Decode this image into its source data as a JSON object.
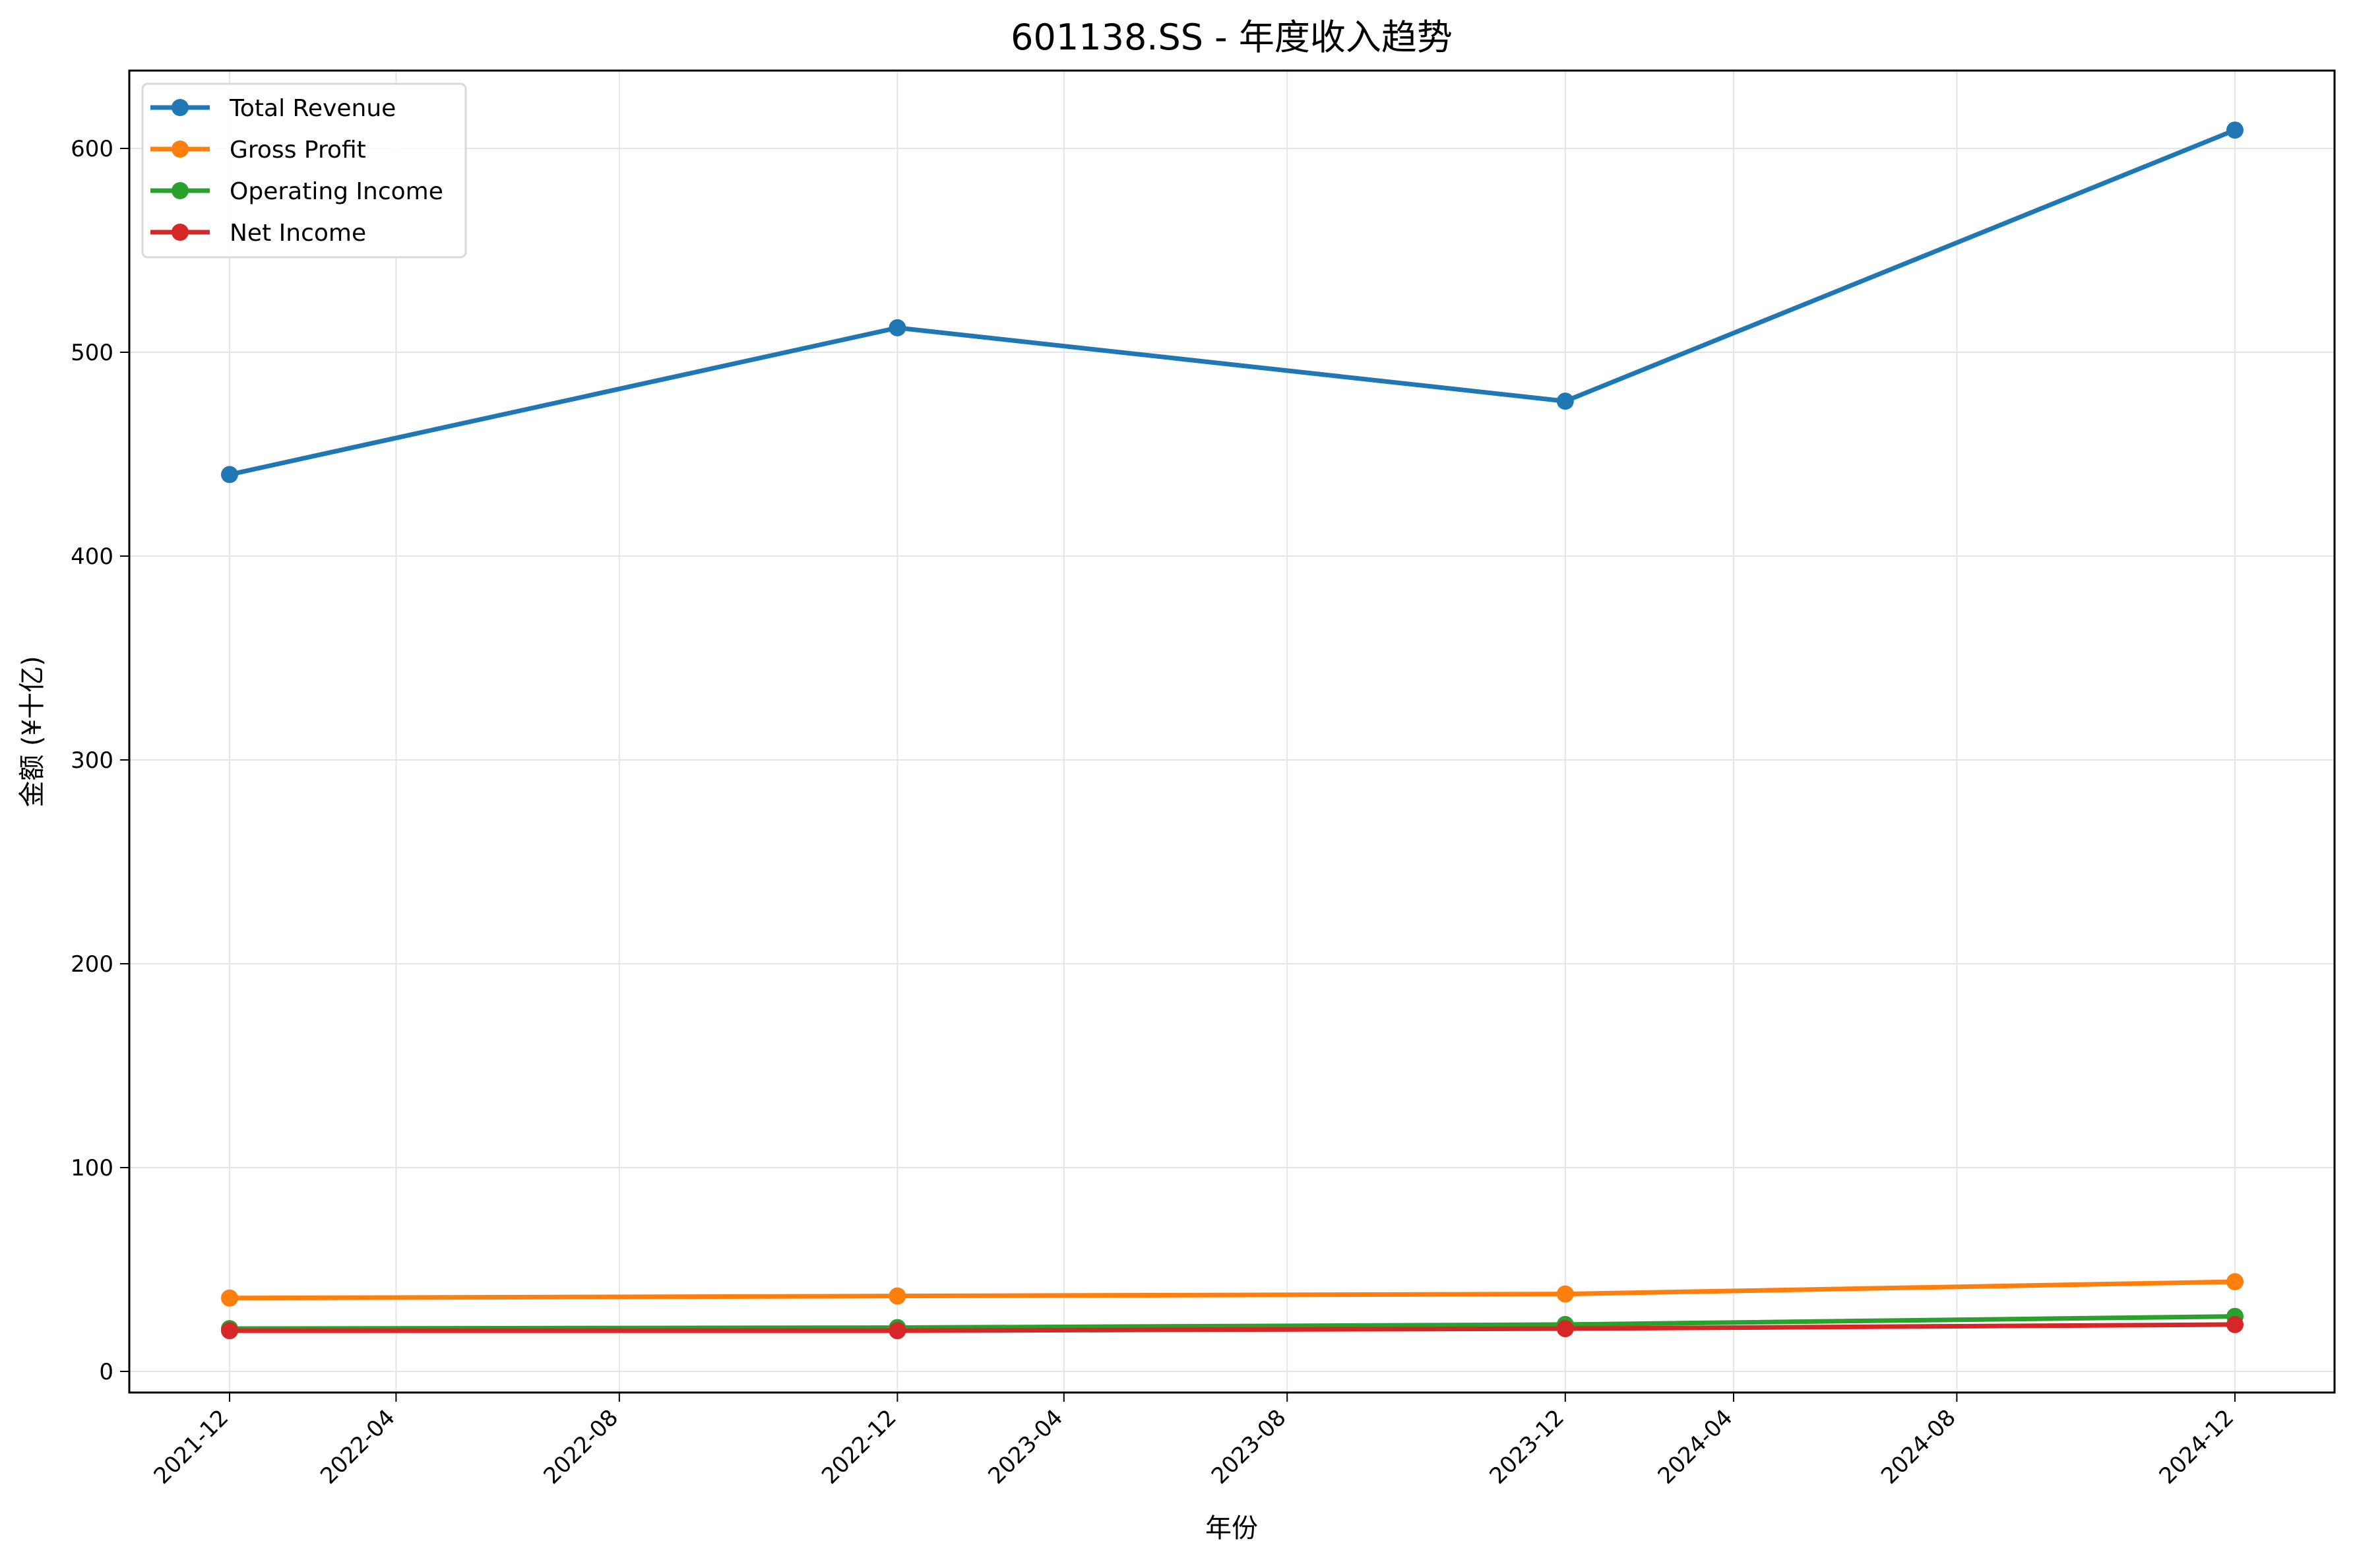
{
  "chart_data": {
    "type": "line",
    "title": "601138.SS - 年度收入趋势",
    "xlabel": "年份",
    "ylabel": "金额 (¥十亿)",
    "x": [
      "2021-12-31",
      "2022-12-31",
      "2023-12-31",
      "2024-12-31"
    ],
    "x_ticks": [
      "2021-12",
      "2022-04",
      "2022-08",
      "2022-12",
      "2023-04",
      "2023-08",
      "2023-12",
      "2024-04",
      "2024-08",
      "2024-12"
    ],
    "y_ticks": [
      0,
      100,
      200,
      300,
      400,
      500,
      600
    ],
    "ylim": [
      -10,
      638
    ],
    "grid": true,
    "legend_position": "top-left",
    "series": [
      {
        "name": "Total Revenue",
        "color": "#1f77b4",
        "values": [
          440,
          512,
          476,
          609
        ]
      },
      {
        "name": "Gross Profit",
        "color": "#ff7f0e",
        "values": [
          36,
          37,
          38,
          44
        ]
      },
      {
        "name": "Operating Income",
        "color": "#2ca02c",
        "values": [
          21,
          21.5,
          23,
          27
        ]
      },
      {
        "name": "Net Income",
        "color": "#d62728",
        "values": [
          20,
          20,
          21,
          23
        ]
      }
    ]
  }
}
